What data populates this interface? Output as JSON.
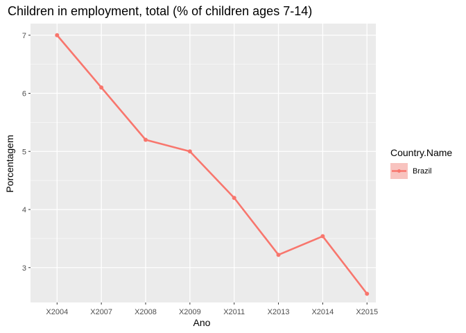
{
  "chart_data": {
    "type": "line",
    "title": "Children in employment, total (% of children ages 7-14)",
    "xlabel": "Ano",
    "ylabel": "Porcentagem",
    "categories": [
      "X2004",
      "X2007",
      "X2008",
      "X2009",
      "X2011",
      "X2013",
      "X2014",
      "X2015"
    ],
    "series": [
      {
        "name": "Brazil",
        "values": [
          7.0,
          6.1,
          5.2,
          5.0,
          4.2,
          3.22,
          3.54,
          2.55
        ],
        "color": "#F8766D"
      }
    ],
    "ylim": [
      2.4,
      7.2
    ],
    "yticks": [
      3,
      4,
      5,
      6,
      7
    ],
    "grid": true,
    "legend": {
      "title": "Country.Name",
      "position": "right"
    },
    "panel_background": "#EBEBEB"
  }
}
